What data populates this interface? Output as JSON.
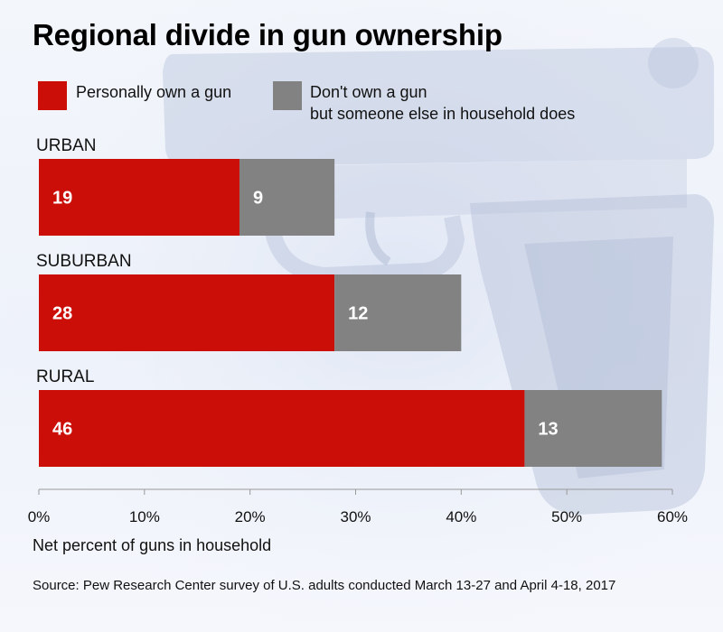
{
  "title": "Regional divide in gun ownership",
  "colors": {
    "personal": "#cc0e08",
    "household": "#828282",
    "text_on_bar": "#ffffff",
    "axis": "#999999"
  },
  "legend": {
    "personal": "Personally own a gun",
    "household_line1": "Don't own a gun",
    "household_line2": "but someone else in household does"
  },
  "chart_data": {
    "type": "bar",
    "orientation": "horizontal",
    "stacked": true,
    "categories": [
      "URBAN",
      "SUBURBAN",
      "RURAL"
    ],
    "series": [
      {
        "name": "Personally own a gun",
        "values": [
          19,
          28,
          46
        ]
      },
      {
        "name": "Don't own a gun but someone else in household does",
        "values": [
          9,
          12,
          13
        ]
      }
    ],
    "xlim": [
      0,
      60
    ],
    "x_ticks": [
      0,
      10,
      20,
      30,
      40,
      50,
      60
    ],
    "x_tick_labels": [
      "0%",
      "10%",
      "20%",
      "30%",
      "40%",
      "50%",
      "60%"
    ],
    "xlabel": "Net percent of guns in household",
    "legend_position": "top-left",
    "grid": false
  },
  "source": "Source: Pew Research Center survey of U.S. adults conducted March 13-27 and April 4-18, 2017"
}
